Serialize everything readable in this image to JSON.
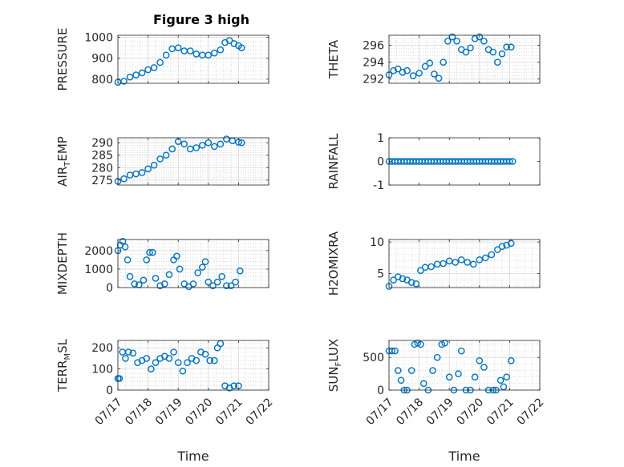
{
  "figure_title": "Figure 3 high",
  "colors": {
    "marker": "#0072BD",
    "axis": "#262626",
    "grid": "#d9d9d9",
    "minor_grid": "#c8c8c8"
  },
  "chart_data": [
    {
      "type": "scatter",
      "ylabel": "PRESSURE",
      "ylim": [
        780,
        1010
      ],
      "yticks": [
        "800",
        "900",
        "1000"
      ],
      "xlim": [
        0,
        5
      ],
      "xticks": [],
      "grid": true,
      "x": [
        0.0,
        0.2,
        0.4,
        0.6,
        0.8,
        1.0,
        1.2,
        1.4,
        1.6,
        1.8,
        2.0,
        2.2,
        2.4,
        2.6,
        2.8,
        3.0,
        3.2,
        3.4,
        3.55,
        3.7,
        3.85,
        4.0,
        4.1
      ],
      "y": [
        785,
        790,
        810,
        820,
        830,
        845,
        855,
        880,
        915,
        945,
        950,
        935,
        935,
        920,
        915,
        915,
        925,
        940,
        975,
        985,
        970,
        960,
        950
      ]
    },
    {
      "type": "scatter",
      "ylabel": "THETA",
      "ylim": [
        291.5,
        297.2
      ],
      "yticks": [
        "292",
        "294",
        "296"
      ],
      "xlim": [
        0,
        5
      ],
      "xticks": [],
      "grid": true,
      "x": [
        0.0,
        0.15,
        0.3,
        0.45,
        0.6,
        0.8,
        1.0,
        1.2,
        1.35,
        1.5,
        1.65,
        1.8,
        1.95,
        2.1,
        2.25,
        2.4,
        2.55,
        2.7,
        2.85,
        3.0,
        3.15,
        3.3,
        3.45,
        3.6,
        3.75,
        3.9,
        4.05
      ],
      "y": [
        292.5,
        293.0,
        293.2,
        292.8,
        293.0,
        292.4,
        292.7,
        293.5,
        293.9,
        292.6,
        292.1,
        294.0,
        296.5,
        297.0,
        296.5,
        295.5,
        295.2,
        295.7,
        296.8,
        297.0,
        296.5,
        295.5,
        295.2,
        294.0,
        295.0,
        295.8,
        295.8
      ]
    },
    {
      "type": "scatter",
      "ylabel": "AIR_TEMP",
      "ylim": [
        273,
        292
      ],
      "yticks": [
        "275",
        "280",
        "285",
        "290"
      ],
      "xlim": [
        0,
        5
      ],
      "xticks": [],
      "grid": true,
      "x": [
        0.0,
        0.2,
        0.4,
        0.6,
        0.8,
        1.0,
        1.2,
        1.4,
        1.6,
        1.8,
        2.0,
        2.2,
        2.4,
        2.6,
        2.8,
        3.0,
        3.2,
        3.4,
        3.6,
        3.8,
        4.0,
        4.1
      ],
      "y": [
        274.5,
        275.5,
        277.0,
        277.5,
        278.0,
        279.5,
        281.0,
        283.5,
        285.0,
        287.5,
        290.5,
        289.5,
        287.5,
        288.0,
        289.0,
        290.0,
        288.5,
        289.5,
        291.5,
        290.8,
        290.2,
        290.0
      ]
    },
    {
      "type": "scatter",
      "ylabel": "RAINFALL",
      "ylim": [
        -1,
        1
      ],
      "yticks": [
        "-1",
        "0",
        "1"
      ],
      "xlim": [
        0,
        5
      ],
      "xticks": [],
      "grid": false,
      "x": [
        0.0,
        0.1,
        0.2,
        0.3,
        0.4,
        0.5,
        0.6,
        0.7,
        0.8,
        0.9,
        1.0,
        1.1,
        1.2,
        1.3,
        1.4,
        1.5,
        1.6,
        1.7,
        1.8,
        1.9,
        2.0,
        2.1,
        2.2,
        2.3,
        2.4,
        2.5,
        2.6,
        2.7,
        2.8,
        2.9,
        3.0,
        3.1,
        3.2,
        3.3,
        3.4,
        3.5,
        3.6,
        3.7,
        3.8,
        3.9,
        4.0,
        4.1
      ],
      "y": [
        0,
        0,
        0,
        0,
        0,
        0,
        0,
        0,
        0,
        0,
        0,
        0,
        0,
        0,
        0,
        0,
        0,
        0,
        0,
        0,
        0,
        0,
        0,
        0,
        0,
        0,
        0,
        0,
        0,
        0,
        0,
        0,
        0,
        0,
        0,
        0,
        0,
        0,
        0,
        0,
        0,
        0
      ]
    },
    {
      "type": "scatter",
      "ylabel": "MIXDEPTH",
      "ylim": [
        0,
        2600
      ],
      "yticks": [
        "0",
        "1000",
        "2000"
      ],
      "xlim": [
        0,
        5
      ],
      "xticks": [],
      "grid": true,
      "x": [
        0.0,
        0.08,
        0.16,
        0.24,
        0.32,
        0.4,
        0.55,
        0.7,
        0.85,
        0.95,
        1.05,
        1.15,
        1.25,
        1.4,
        1.55,
        1.7,
        1.85,
        1.95,
        2.05,
        2.2,
        2.35,
        2.5,
        2.65,
        2.8,
        2.9,
        3.0,
        3.15,
        3.3,
        3.45,
        3.6,
        3.75,
        3.9,
        4.05
      ],
      "y": [
        2000,
        2300,
        2500,
        2200,
        1500,
        600,
        200,
        150,
        400,
        1500,
        1900,
        1900,
        500,
        100,
        200,
        700,
        1500,
        1700,
        1000,
        200,
        50,
        200,
        800,
        1100,
        1400,
        300,
        100,
        300,
        600,
        100,
        100,
        300,
        900
      ]
    },
    {
      "type": "scatter",
      "ylabel": "H2OMIXRA",
      "ylim": [
        2.8,
        10.4
      ],
      "yticks": [
        "5",
        "10"
      ],
      "xlim": [
        0,
        5
      ],
      "xticks": [],
      "grid": true,
      "x": [
        0.0,
        0.15,
        0.3,
        0.45,
        0.6,
        0.75,
        0.9,
        1.05,
        1.2,
        1.4,
        1.6,
        1.8,
        2.0,
        2.2,
        2.4,
        2.6,
        2.8,
        3.0,
        3.2,
        3.4,
        3.6,
        3.75,
        3.9,
        4.05
      ],
      "y": [
        3.0,
        4.0,
        4.5,
        4.2,
        4.0,
        3.6,
        3.4,
        5.5,
        6.0,
        6.1,
        6.5,
        6.6,
        7.0,
        6.8,
        7.2,
        6.8,
        6.5,
        7.2,
        7.5,
        8.0,
        8.8,
        9.3,
        9.5,
        9.8
      ]
    },
    {
      "type": "scatter",
      "ylabel": "TERR_MSL",
      "ylim": [
        0,
        235
      ],
      "yticks": [
        "0",
        "100",
        "200"
      ],
      "xlim": [
        0,
        5
      ],
      "xticks": [
        "07/17",
        "07/18",
        "07/19",
        "07/20",
        "07/21",
        "07/22"
      ],
      "xlabel": "Time",
      "grid": true,
      "x": [
        0.0,
        0.05,
        0.15,
        0.25,
        0.35,
        0.5,
        0.65,
        0.8,
        0.95,
        1.1,
        1.25,
        1.4,
        1.55,
        1.7,
        1.85,
        2.0,
        2.15,
        2.3,
        2.45,
        2.6,
        2.75,
        2.9,
        3.05,
        3.2,
        3.3,
        3.4,
        3.55,
        3.7,
        3.85,
        4.0
      ],
      "y": [
        55,
        55,
        180,
        150,
        180,
        175,
        130,
        140,
        150,
        100,
        130,
        150,
        160,
        150,
        180,
        130,
        90,
        130,
        150,
        140,
        180,
        170,
        140,
        140,
        200,
        220,
        20,
        10,
        20,
        20
      ]
    },
    {
      "type": "scatter",
      "ylabel": "SUN_FLUX",
      "ylim": [
        0,
        760
      ],
      "yticks": [
        "0",
        "500"
      ],
      "xlim": [
        0,
        5
      ],
      "xticks": [
        "07/17",
        "07/18",
        "07/19",
        "07/20",
        "07/21",
        "07/22"
      ],
      "xlabel": "Time",
      "grid": true,
      "x": [
        0.0,
        0.1,
        0.2,
        0.3,
        0.4,
        0.5,
        0.6,
        0.75,
        0.85,
        0.95,
        1.05,
        1.15,
        1.3,
        1.45,
        1.6,
        1.75,
        1.85,
        2.0,
        2.15,
        2.3,
        2.4,
        2.55,
        2.7,
        2.85,
        3.0,
        3.15,
        3.3,
        3.45,
        3.55,
        3.7,
        3.8,
        3.9,
        4.05
      ],
      "y": [
        600,
        600,
        600,
        300,
        150,
        0,
        0,
        300,
        700,
        720,
        700,
        100,
        0,
        300,
        500,
        700,
        720,
        200,
        0,
        250,
        600,
        0,
        0,
        200,
        450,
        350,
        0,
        0,
        0,
        150,
        50,
        200,
        450
      ]
    }
  ]
}
